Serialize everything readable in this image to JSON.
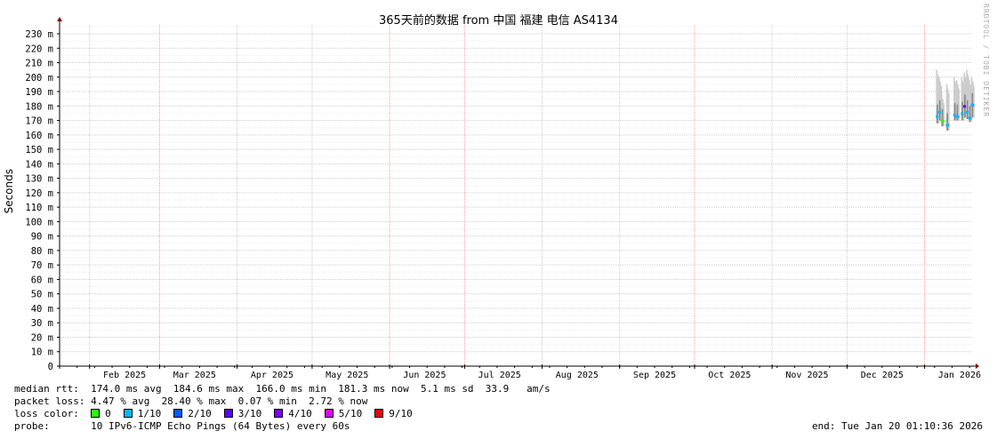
{
  "chart_data": {
    "type": "area",
    "title": "365天前的数据 from 中国 福建 电信 AS4134",
    "ylabel": "Seconds",
    "watermark": "RRDTOOL / TOBI OETIKER",
    "ylim": [
      0,
      0.23
    ],
    "y_ticks": [
      "0",
      "10 m",
      "20 m",
      "30 m",
      "40 m",
      "50 m",
      "60 m",
      "70 m",
      "80 m",
      "90 m",
      "100 m",
      "110 m",
      "120 m",
      "130 m",
      "140 m",
      "150 m",
      "160 m",
      "170 m",
      "180 m",
      "190 m",
      "200 m",
      "210 m",
      "220 m",
      "230 m"
    ],
    "xlim": [
      "2025-01-20",
      "2026-01-20"
    ],
    "x_ticks": [
      {
        "label": "Feb 2025",
        "date": "2025-02-15"
      },
      {
        "label": "Mar 2025",
        "date": "2025-03-15"
      },
      {
        "label": "Apr 2025",
        "date": "2025-04-15"
      },
      {
        "label": "May 2025",
        "date": "2025-05-15"
      },
      {
        "label": "Jun 2025",
        "date": "2025-06-15"
      },
      {
        "label": "Jul 2025",
        "date": "2025-07-15"
      },
      {
        "label": "Aug 2025",
        "date": "2025-08-15"
      },
      {
        "label": "Sep 2025",
        "date": "2025-09-15"
      },
      {
        "label": "Oct 2025",
        "date": "2025-10-15"
      },
      {
        "label": "Nov 2025",
        "date": "2025-11-15"
      },
      {
        "label": "Dec 2025",
        "date": "2025-12-15"
      },
      {
        "label": "Jan 2026",
        "date": "2026-01-15"
      }
    ],
    "month_starts": [
      "2025-02-01",
      "2025-03-01",
      "2025-04-01",
      "2025-05-01",
      "2025-06-01",
      "2025-07-01",
      "2025-08-01",
      "2025-09-01",
      "2025-10-01",
      "2025-11-01",
      "2025-12-01",
      "2026-01-01"
    ],
    "major_month_starts": [
      "2025-03-01",
      "2025-06-01",
      "2025-07-01",
      "2025-10-01",
      "2026-01-01"
    ],
    "grid": true,
    "series": [
      {
        "date": "2026-01-06",
        "median": 173,
        "min": 168,
        "max": 205,
        "loss": "1/10"
      },
      {
        "date": "2026-01-07",
        "median": 176,
        "min": 170,
        "max": 200,
        "loss": "1/10"
      },
      {
        "date": "2026-01-08",
        "median": 170,
        "min": 166,
        "max": 188,
        "loss": "0"
      },
      {
        "date": "2026-01-10",
        "median": 167,
        "min": 163,
        "max": 195,
        "loss": "1/10"
      },
      {
        "date": "2026-01-13",
        "median": 174,
        "min": 170,
        "max": 200,
        "loss": "1/10"
      },
      {
        "date": "2026-01-14",
        "median": 173,
        "min": 170,
        "max": 198,
        "loss": "1/10"
      },
      {
        "date": "2026-01-16",
        "median": 175,
        "min": 170,
        "max": 200,
        "loss": "1/10"
      },
      {
        "date": "2026-01-17",
        "median": 180,
        "min": 172,
        "max": 203,
        "loss": "3/10"
      },
      {
        "date": "2026-01-18",
        "median": 176,
        "min": 171,
        "max": 205,
        "loss": "1/10"
      },
      {
        "date": "2026-01-19",
        "median": 172,
        "min": 169,
        "max": 198,
        "loss": "1/10"
      },
      {
        "date": "2026-01-20",
        "median": 181,
        "min": 172,
        "max": 200,
        "loss": "1/10"
      }
    ]
  },
  "legend": {
    "median_rtt": "median rtt:  174.0 ms avg  184.6 ms max  166.0 ms min  181.3 ms now  5.1 ms sd  33.9   am/s",
    "packet_loss": "packet loss: 4.47 % avg  28.40 % max  0.07 % min  2.72 % now",
    "loss_color_label": "loss color:  ",
    "loss_colors": [
      {
        "label": "0",
        "color": "#26ff00"
      },
      {
        "label": "1/10",
        "color": "#00b8ff"
      },
      {
        "label": "2/10",
        "color": "#0059ff"
      },
      {
        "label": "3/10",
        "color": "#5e00ff"
      },
      {
        "label": "4/10",
        "color": "#7e00ff"
      },
      {
        "label": "5/10",
        "color": "#dd00ff"
      },
      {
        "label": "9/10",
        "color": "#ff0000"
      }
    ],
    "probe": "probe:       10 IPv6-ICMP Echo Pings (64 Bytes) every 60s",
    "end": "end: Tue Jan 20 01:10:36 2026"
  }
}
